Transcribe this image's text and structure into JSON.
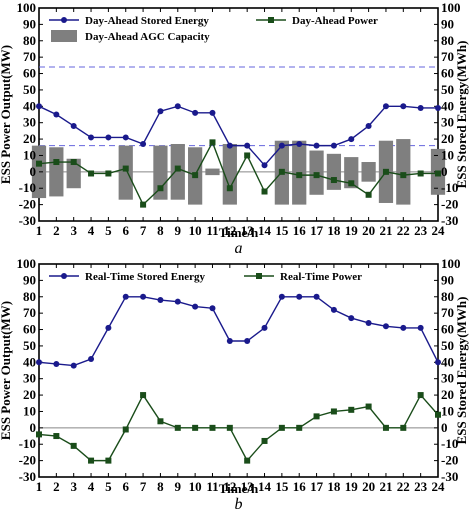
{
  "chart_data": [
    {
      "type": "line",
      "caption": "a",
      "xlabel": "Time/h",
      "ylabel_left": "ESS Power Output(MW)",
      "ylabel_right": "ESS Stored Energy(MWh)",
      "xlim": [
        1,
        24
      ],
      "ylim": [
        -30,
        100
      ],
      "x_ticks": [
        1,
        2,
        3,
        4,
        5,
        6,
        7,
        8,
        9,
        10,
        11,
        12,
        13,
        14,
        15,
        16,
        17,
        18,
        19,
        20,
        21,
        22,
        23,
        24
      ],
      "y_ticks": [
        -30,
        -20,
        -10,
        0,
        10,
        20,
        30,
        40,
        50,
        60,
        70,
        80,
        90,
        100
      ],
      "legend": [
        "Day-Ahead Stored Energy",
        "Day-Ahead Power",
        "Day-Ahead AGC Capacity"
      ],
      "reference_lines": [
        0,
        16,
        64
      ],
      "colors": {
        "energy": "#1a1a8c",
        "power": "#1a4d1a",
        "agc": "#7f7f7f",
        "ref": "#6666dd"
      },
      "series": [
        {
          "name": "Day-Ahead Stored Energy",
          "kind": "line-circle",
          "values": [
            40,
            35,
            28,
            21,
            21,
            21,
            17,
            37,
            40,
            36,
            36,
            16,
            16,
            4,
            16,
            17,
            16,
            16,
            20,
            28,
            40,
            40,
            39,
            39
          ]
        },
        {
          "name": "Day-Ahead Power",
          "kind": "line-square",
          "values": [
            5,
            6,
            6,
            -1,
            -1,
            2,
            -20,
            -10,
            2,
            -2,
            18,
            -10,
            10,
            -12,
            0,
            -2,
            -2,
            -5,
            -7,
            -14,
            0,
            -2,
            -1,
            -1
          ]
        },
        {
          "name": "Day-Ahead AGC Capacity",
          "kind": "bar-range",
          "low": [
            -16,
            -15,
            -10,
            0,
            0,
            -17,
            0,
            -17,
            -17,
            -20,
            -2,
            -20,
            0,
            0,
            -20,
            -20,
            -14,
            -11,
            -10,
            -6,
            -19,
            -20,
            0,
            -14
          ],
          "high": [
            16,
            15,
            8,
            0,
            0,
            16,
            0,
            16,
            17,
            15,
            2,
            17,
            0,
            0,
            19,
            19,
            13,
            11,
            9,
            6,
            19,
            20,
            0,
            14
          ]
        }
      ]
    },
    {
      "type": "line",
      "caption": "b",
      "xlabel": "Time/h",
      "ylabel_left": "ESS Power Output(MW)",
      "ylabel_right": "ESS Stored Energy(MWh)",
      "xlim": [
        1,
        24
      ],
      "ylim": [
        -30,
        100
      ],
      "x_ticks": [
        1,
        2,
        3,
        4,
        5,
        6,
        7,
        8,
        9,
        10,
        11,
        12,
        13,
        14,
        15,
        16,
        17,
        18,
        19,
        20,
        21,
        22,
        23,
        24
      ],
      "y_ticks": [
        -30,
        -20,
        -10,
        0,
        10,
        20,
        30,
        40,
        50,
        60,
        70,
        80,
        90,
        100
      ],
      "legend": [
        "Real-Time Stored Energy",
        "Real-Time Power"
      ],
      "reference_lines": [
        0
      ],
      "colors": {
        "energy": "#1a1a8c",
        "power": "#1a4d1a",
        "ref": "#888888"
      },
      "series": [
        {
          "name": "Real-Time Stored Energy",
          "kind": "line-circle",
          "values": [
            40,
            39,
            38,
            42,
            61,
            80,
            80,
            78,
            77,
            74,
            73,
            53,
            53,
            61,
            80,
            80,
            80,
            72,
            67,
            64,
            62,
            61,
            61,
            40
          ]
        },
        {
          "name": "Real-Time Power",
          "kind": "line-square",
          "values": [
            -4,
            -5,
            -11,
            -20,
            -20,
            -1,
            20,
            4,
            0,
            0,
            0,
            0,
            -20,
            -8,
            0,
            0,
            7,
            10,
            11,
            13,
            0,
            0,
            20,
            8
          ]
        }
      ]
    }
  ]
}
